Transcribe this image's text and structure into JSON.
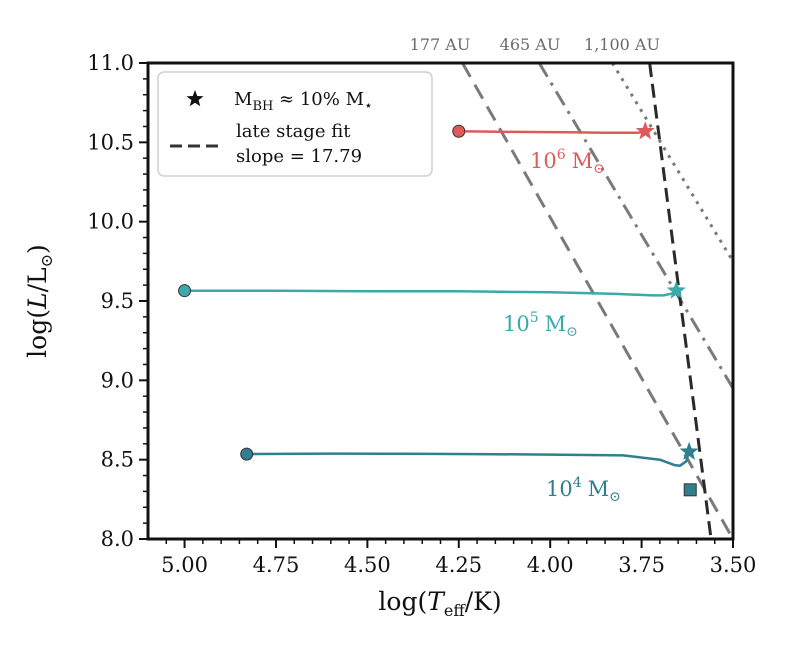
{
  "chart_data": {
    "type": "line",
    "xlabel": "log(T_eff/K)",
    "ylabel": "log(L/L_⊙)",
    "xlim": [
      5.1,
      3.5
    ],
    "ylim": [
      8.0,
      11.0
    ],
    "xticks": [
      5.0,
      4.75,
      4.5,
      4.25,
      4.0,
      3.75,
      3.5
    ],
    "xtick_labels": [
      "5.00",
      "4.75",
      "4.50",
      "4.25",
      "4.00",
      "3.75",
      "3.50"
    ],
    "yticks": [
      8.0,
      8.5,
      9.0,
      9.5,
      10.0,
      10.5,
      11.0
    ],
    "ytick_labels": [
      "8.0",
      "8.5",
      "9.0",
      "9.5",
      "10.0",
      "10.5",
      "11.0"
    ],
    "legend": {
      "position": "top-left",
      "entries": [
        {
          "marker": "star",
          "parts": [
            "M",
            "BH",
            " ≈ 10% M",
            "⋆"
          ]
        },
        {
          "marker": "dashed-line",
          "lines": [
            "late stage fit",
            "slope = 17.79"
          ]
        }
      ]
    },
    "radius_lines": [
      {
        "label": "177 AU",
        "style": "dashed",
        "points": [
          [
            4.24,
            11.0
          ],
          [
            3.5,
            8.0
          ]
        ]
      },
      {
        "label": "465 AU",
        "style": "dashdot",
        "points": [
          [
            4.03,
            11.0
          ],
          [
            3.5,
            8.95
          ]
        ]
      },
      {
        "label": "1,100 AU",
        "style": "dotted",
        "points": [
          [
            3.83,
            11.0
          ],
          [
            3.5,
            9.75
          ]
        ]
      }
    ],
    "late_stage_fit": {
      "slope": 17.79,
      "points": [
        [
          3.728,
          11.0
        ],
        [
          3.56,
          8.0
        ]
      ]
    },
    "series": [
      {
        "name": "10^6 M_⊙",
        "label_main": "10",
        "label_exp": "6",
        "label_unit": "M",
        "color": "#e05a5a",
        "start": [
          4.25,
          10.57
        ],
        "x": [
          4.25,
          4.1,
          3.95,
          3.85,
          3.76,
          3.74
        ],
        "y": [
          10.57,
          10.566,
          10.563,
          10.561,
          10.56,
          10.57
        ],
        "star": [
          3.74,
          10.57
        ]
      },
      {
        "name": "10^5 M_⊙",
        "label_main": "10",
        "label_exp": "5",
        "label_unit": "M",
        "color": "#3aa9a9",
        "start": [
          5.0,
          9.565
        ],
        "x": [
          5.0,
          4.75,
          4.5,
          4.25,
          4.0,
          3.82,
          3.72,
          3.69,
          3.665,
          3.655
        ],
        "y": [
          9.565,
          9.564,
          9.562,
          9.561,
          9.555,
          9.545,
          9.535,
          9.535,
          9.548,
          9.565
        ],
        "star": [
          3.655,
          9.565
        ]
      },
      {
        "name": "10^4 M_⊙",
        "label_main": "10",
        "label_exp": "4",
        "label_unit": "M",
        "color": "#2f7f8f",
        "start": [
          4.83,
          8.535
        ],
        "x": [
          4.83,
          4.6,
          4.4,
          4.2,
          4.0,
          3.8,
          3.7,
          3.66,
          3.645,
          3.628,
          3.62
        ],
        "y": [
          8.535,
          8.538,
          8.537,
          8.535,
          8.532,
          8.527,
          8.5,
          8.466,
          8.462,
          8.49,
          8.55
        ],
        "star": [
          3.62,
          8.55
        ],
        "square": [
          3.617,
          8.31
        ]
      }
    ]
  }
}
